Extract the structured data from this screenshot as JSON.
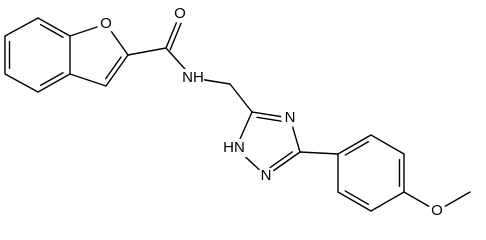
{
  "atoms": {
    "furan_oxygen": "O",
    "carbonyl_oxygen": "O",
    "amide_nitrogen": "NH",
    "triazole_n4": "N",
    "triazole_n1": "HN",
    "triazole_n2": "N",
    "methoxy_oxygen": "O"
  }
}
